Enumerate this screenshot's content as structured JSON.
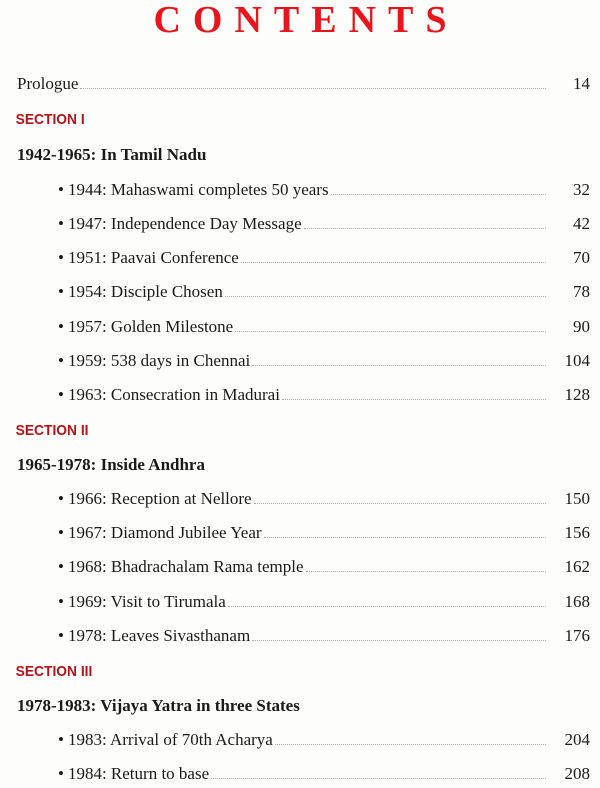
{
  "title": "CONTENTS",
  "entries": [
    {
      "type": "entry",
      "label": "Prologue",
      "page": "14"
    },
    {
      "type": "section",
      "label": "SECTION I"
    },
    {
      "type": "heading",
      "label": "1942-1965: In Tamil Nadu"
    },
    {
      "type": "item",
      "label": "1944: Mahaswami completes 50 years",
      "page": "32"
    },
    {
      "type": "item",
      "label": "1947: Independence Day Message",
      "page": "42"
    },
    {
      "type": "item",
      "label": "1951: Paavai Conference",
      "page": "70"
    },
    {
      "type": "item",
      "label": "1954: Disciple Chosen",
      "page": "78"
    },
    {
      "type": "item",
      "label": "1957: Golden Milestone",
      "page": "90"
    },
    {
      "type": "item",
      "label": "1959: 538 days in Chennai",
      "page": "104"
    },
    {
      "type": "item",
      "label": "1963: Consecration in Madurai",
      "page": "128"
    },
    {
      "type": "section",
      "label": "SECTION II"
    },
    {
      "type": "heading",
      "label": "1965-1978: Inside Andhra"
    },
    {
      "type": "item",
      "label": "1966: Reception at Nellore",
      "page": "150"
    },
    {
      "type": "item",
      "label": "1967: Diamond Jubilee Year",
      "page": "156"
    },
    {
      "type": "item",
      "label": "1968: Bhadrachalam Rama temple",
      "page": "162"
    },
    {
      "type": "item",
      "label": "1969: Visit to Tirumala",
      "page": "168"
    },
    {
      "type": "item",
      "label": "1978: Leaves Sivasthanam",
      "page": "176"
    },
    {
      "type": "section",
      "label": "SECTION III"
    },
    {
      "type": "heading",
      "label": "1978-1983: Vijaya Yatra in three States"
    },
    {
      "type": "item",
      "label": "1983: Arrival of 70th Acharya",
      "page": "204"
    },
    {
      "type": "item",
      "label": "1984: Return to base",
      "page": "208"
    }
  ],
  "colors": {
    "title": "#e8151c",
    "section": "#b3141b"
  }
}
